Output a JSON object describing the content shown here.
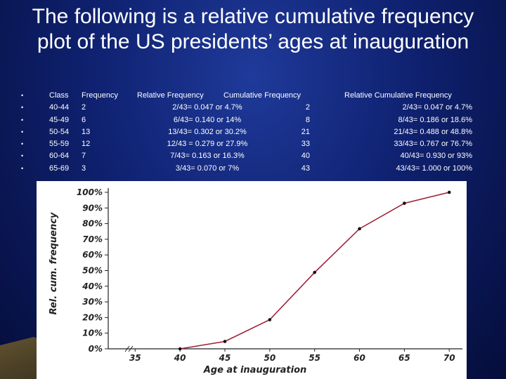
{
  "title": "The following is a relative cumulative frequency plot of the US presidents’ ages at inauguration",
  "table": {
    "headers": {
      "class": "Class",
      "frequency": "Frequency",
      "relative_frequency": "Relative Frequency",
      "cumulative_frequency": "Cumulative Frequency",
      "relative_cumulative_frequency": "Relative Cumulative Frequency"
    },
    "bullet": "•",
    "rows": [
      {
        "class": "40-44",
        "frequency": "2",
        "relative_frequency": "2/43= 0.047 or 4.7%",
        "cumulative_frequency": "2",
        "relative_cumulative_frequency": "2/43= 0.047  or 4.7%"
      },
      {
        "class": "45-49",
        "frequency": "6",
        "relative_frequency": "6/43= 0.140 or 14%",
        "cumulative_frequency": "8",
        "relative_cumulative_frequency": "8/43= 0.186 or 18.6%"
      },
      {
        "class": "50-54",
        "frequency": "13",
        "relative_frequency": "13/43= 0.302 or 30.2%",
        "cumulative_frequency": "21",
        "relative_cumulative_frequency": "21/43= 0.488 or 48.8%"
      },
      {
        "class": "55-59",
        "frequency": "12",
        "relative_frequency": "12/43 = 0.279 or 27.9%",
        "cumulative_frequency": "33",
        "relative_cumulative_frequency": "33/43= 0.767 or 76.7%"
      },
      {
        "class": "60-64",
        "frequency": "7",
        "relative_frequency": "7/43= 0.163 or 16.3%",
        "cumulative_frequency": "40",
        "relative_cumulative_frequency": "40/43= 0.930 or 93%"
      },
      {
        "class": "65-69",
        "frequency": "3",
        "relative_frequency": "3/43= 0.070 or 7%",
        "cumulative_frequency": "43",
        "relative_cumulative_frequency": "43/43= 1.000 or 100%"
      }
    ]
  },
  "chart_data": {
    "type": "line",
    "xlabel": "Age at inauguration",
    "ylabel": "Rel. cum. frequency",
    "x_ticks": [
      "35",
      "40",
      "45",
      "50",
      "55",
      "60",
      "65",
      "70"
    ],
    "y_ticks": [
      "0%",
      "10%",
      "20%",
      "30%",
      "40%",
      "50%",
      "60%",
      "70%",
      "80%",
      "90%",
      "100%"
    ],
    "xlim": [
      32,
      71
    ],
    "ylim": [
      0,
      100
    ],
    "x": [
      40,
      45,
      50,
      55,
      60,
      65,
      70
    ],
    "series": [
      {
        "values": [
          0,
          4.7,
          18.6,
          48.8,
          76.7,
          93,
          100
        ]
      }
    ],
    "colors": {
      "line": "#a0203a",
      "marker": "#111111"
    },
    "grid": false
  }
}
